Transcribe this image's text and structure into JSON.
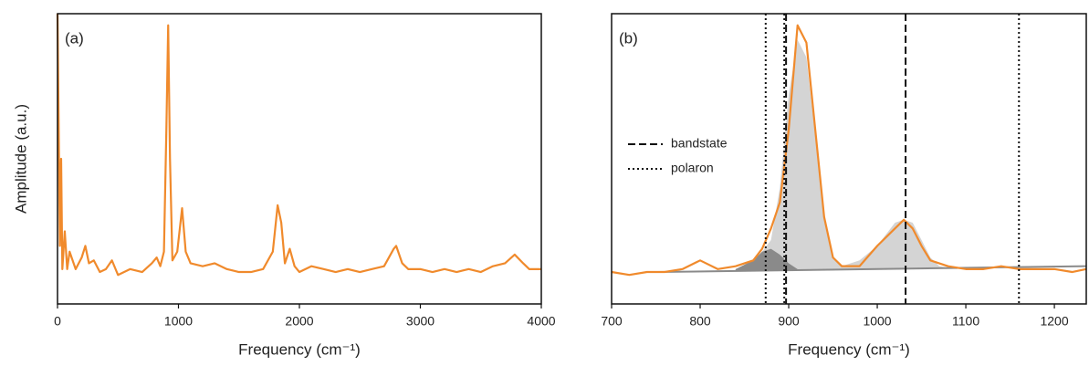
{
  "chart_data": [
    {
      "type": "line",
      "panel_label": "(a)",
      "xlabel": "Frequency (cm⁻¹)",
      "ylabel": "Amplitude (a.u.)",
      "xlim": [
        0,
        4000
      ],
      "xticks": [
        0,
        1000,
        2000,
        3000,
        4000
      ],
      "ylim": [
        0,
        100
      ],
      "series": [
        {
          "color": "#f08a2c",
          "x": [
            0,
            10,
            20,
            30,
            40,
            60,
            80,
            100,
            150,
            200,
            230,
            260,
            300,
            350,
            400,
            450,
            500,
            600,
            700,
            780,
            820,
            850,
            880,
            900,
            915,
            930,
            950,
            990,
            1030,
            1060,
            1100,
            1200,
            1300,
            1400,
            1500,
            1600,
            1700,
            1780,
            1820,
            1850,
            1880,
            1920,
            1960,
            2000,
            2100,
            2200,
            2300,
            2400,
            2500,
            2600,
            2700,
            2780,
            2800,
            2850,
            2900,
            3000,
            3100,
            3200,
            3300,
            3400,
            3500,
            3600,
            3700,
            3780,
            3850,
            3900,
            4000
          ],
          "values": [
            100,
            60,
            20,
            50,
            12,
            25,
            12,
            18,
            12,
            16,
            20,
            14,
            15,
            11,
            12,
            15,
            10,
            12,
            11,
            14,
            16,
            13,
            18,
            60,
            96,
            50,
            15,
            18,
            33,
            18,
            14,
            13,
            14,
            12,
            11,
            11,
            12,
            18,
            34,
            28,
            14,
            19,
            13,
            11,
            13,
            12,
            11,
            12,
            11,
            12,
            13,
            19,
            20,
            14,
            12,
            12,
            11,
            12,
            11,
            12,
            11,
            13,
            14,
            17,
            14,
            12,
            12
          ]
        }
      ]
    },
    {
      "type": "line",
      "panel_label": "(b)",
      "xlabel": "Frequency (cm⁻¹)",
      "xlim": [
        700,
        1236
      ],
      "xticks": [
        700,
        800,
        900,
        1000,
        1100,
        1200
      ],
      "ylim": [
        0,
        100
      ],
      "series": [
        {
          "color": "#d4d4d4",
          "fill": true,
          "x": [
            840,
            860,
            880,
            890,
            900,
            910,
            920,
            930,
            940,
            950,
            960,
            980,
            1000,
            1010,
            1020,
            1030,
            1040,
            1050,
            1060,
            1070,
            1090
          ],
          "values": [
            12,
            14,
            22,
            40,
            72,
            91,
            85,
            58,
            30,
            16,
            13,
            15,
            20,
            24,
            28,
            29,
            28,
            22,
            16,
            13,
            12
          ]
        },
        {
          "color": "#8a8a8a",
          "fill": true,
          "x": [
            840,
            860,
            870,
            880,
            890,
            900,
            910
          ],
          "values": [
            12,
            15,
            18,
            19,
            17,
            14,
            12
          ]
        },
        {
          "color": "#8a8a8a",
          "x": [
            752,
            1236
          ],
          "values": [
            11,
            13
          ]
        },
        {
          "color": "#f08a2c",
          "x": [
            700,
            720,
            740,
            760,
            780,
            800,
            820,
            840,
            860,
            870,
            880,
            890,
            900,
            910,
            920,
            930,
            940,
            950,
            960,
            980,
            1000,
            1020,
            1030,
            1040,
            1050,
            1060,
            1080,
            1100,
            1120,
            1140,
            1160,
            1180,
            1200,
            1220,
            1236
          ],
          "values": [
            11,
            10,
            11,
            11,
            12,
            15,
            12,
            13,
            15,
            19,
            26,
            35,
            60,
            96,
            90,
            60,
            30,
            16,
            13,
            13,
            20,
            26,
            29,
            26,
            20,
            15,
            13,
            12,
            12,
            13,
            12,
            12,
            12,
            11,
            12
          ]
        }
      ],
      "reference_lines": [
        {
          "name": "bandstate",
          "style": "dashed",
          "x": [
            897,
            1032
          ]
        },
        {
          "name": "polaron",
          "style": "dotted",
          "x": [
            874,
            895,
            1160
          ]
        }
      ]
    }
  ]
}
